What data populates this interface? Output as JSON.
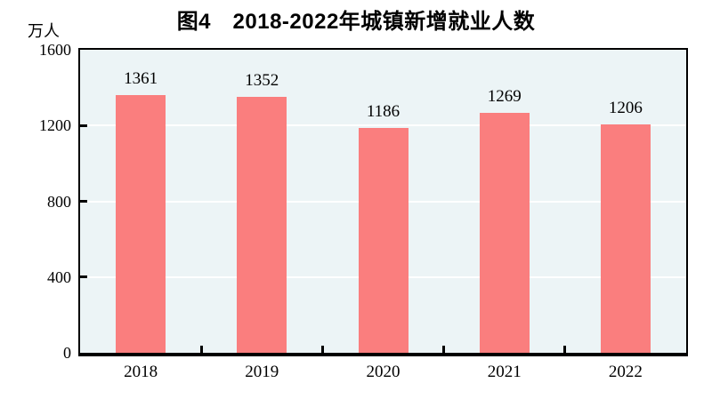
{
  "chart_data": {
    "type": "bar",
    "title": "图4　2018-2022年城镇新增就业人数",
    "unit": "万人",
    "categories": [
      "2018",
      "2019",
      "2020",
      "2021",
      "2022"
    ],
    "values": [
      1361,
      1352,
      1186,
      1269,
      1206
    ],
    "value_labels": [
      "1361",
      "1352",
      "1186",
      "1269",
      "1206"
    ],
    "xlabel": "",
    "ylabel": "万人",
    "yticks": [
      0,
      400,
      800,
      1200,
      1600
    ],
    "ylim": [
      0,
      1600
    ],
    "grid": "horizontal-only",
    "legend": "none",
    "colors": {
      "bar": "#FA7E7E",
      "plot_background": "#ECF4F6",
      "gridline": "#FFFFFF",
      "axis": "#000000",
      "text": "#000000",
      "page_background": "#FFFFFF"
    }
  }
}
